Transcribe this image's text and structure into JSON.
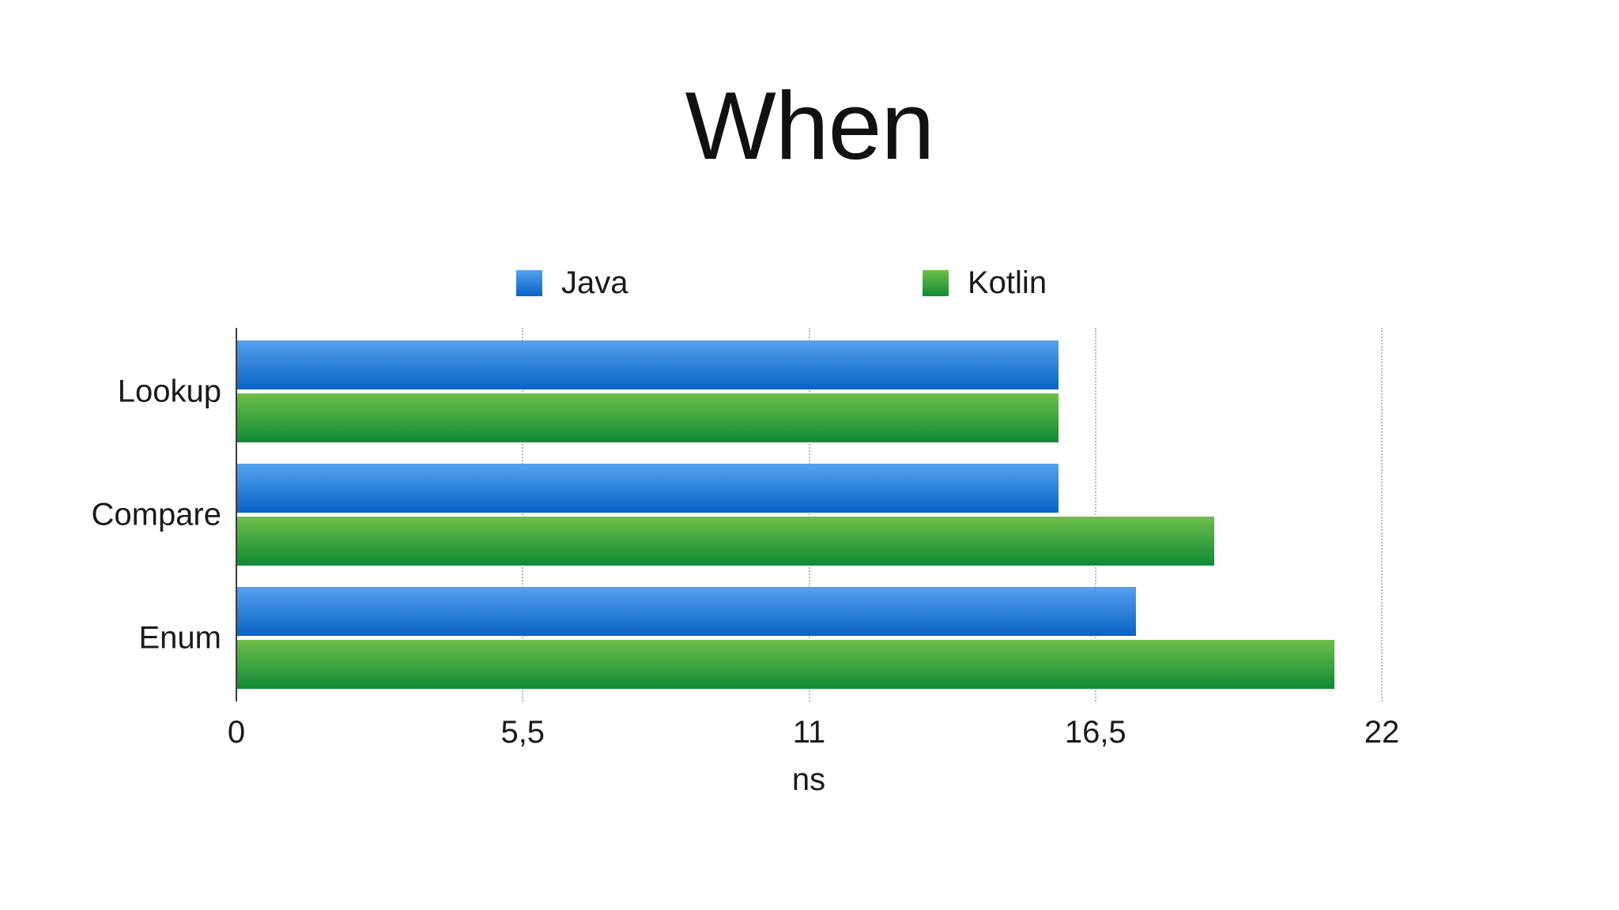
{
  "slide": {
    "title": "When",
    "background": "#ffffff"
  },
  "chart_data": {
    "type": "bar",
    "orientation": "horizontal",
    "title": "When",
    "categories": [
      "Lookup",
      "Compare",
      "Enum"
    ],
    "series": [
      {
        "name": "Java",
        "values": [
          15.8,
          15.8,
          17.3
        ],
        "color_top": "#55A2EE",
        "color_bottom": "#0A62C6"
      },
      {
        "name": "Kotlin",
        "values": [
          15.8,
          18.8,
          21.1
        ],
        "color_top": "#6FBE4A",
        "color_bottom": "#0E8A35"
      }
    ],
    "xlabel": "ns",
    "ylabel": "",
    "xlim": [
      0,
      22
    ],
    "x_ticks": [
      {
        "value": 0,
        "label": "0"
      },
      {
        "value": 5.5,
        "label": "5,5"
      },
      {
        "value": 11,
        "label": "11"
      },
      {
        "value": 16.5,
        "label": "16,5"
      },
      {
        "value": 22,
        "label": "22"
      }
    ],
    "grid": "vertical-dotted",
    "legend_position": "top-center"
  },
  "colors": {
    "axis_line": "#3d3d3d",
    "gridline": "#b8b8b8",
    "text": "#1a1a1a"
  }
}
